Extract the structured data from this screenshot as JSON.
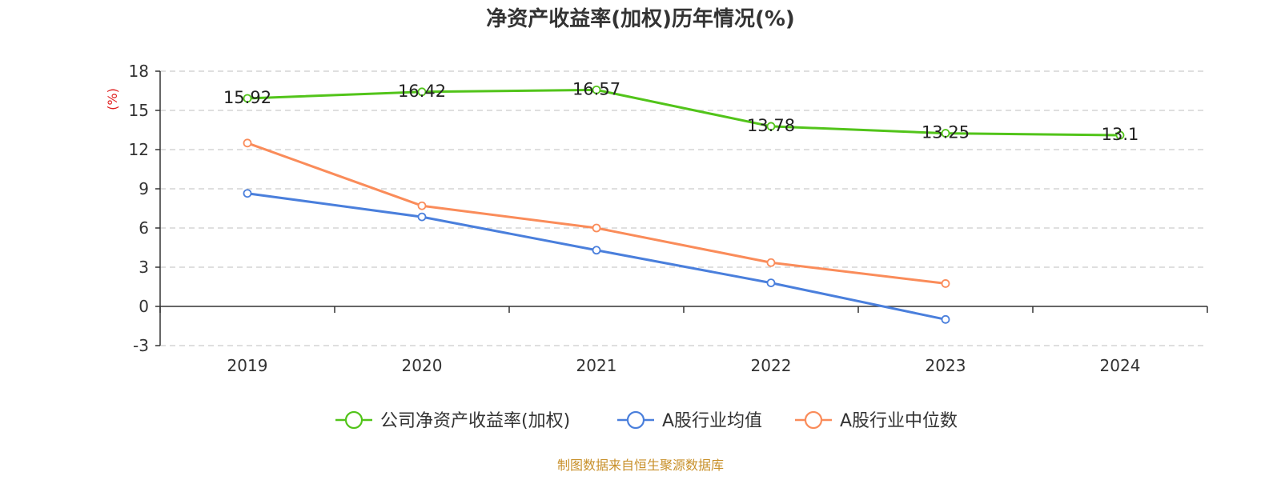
{
  "chart_data": {
    "type": "line",
    "title": "净资产收益率(加权)历年情况(%)",
    "ylabel": "(%)",
    "xlabel": "",
    "categories": [
      "2019",
      "2020",
      "2021",
      "2022",
      "2023",
      "2024"
    ],
    "ylim": [
      -3,
      18
    ],
    "yticks": [
      18,
      15,
      12,
      9,
      6,
      3,
      0,
      -3
    ],
    "grid": true,
    "legend_position": "bottom-center",
    "series": [
      {
        "name": "公司净资产收益率(加权)",
        "color": "#52c41a",
        "values": [
          15.92,
          16.42,
          16.57,
          13.78,
          13.25,
          13.1
        ],
        "labels": [
          "15.92",
          "16.42",
          "16.57",
          "13.78",
          "13.25",
          "13.1"
        ]
      },
      {
        "name": "A股行业均值",
        "color": "#4a7fdc",
        "values": [
          8.65,
          6.85,
          4.3,
          1.8,
          -1.0,
          null
        ]
      },
      {
        "name": "A股行业中位数",
        "color": "#fa8c5a",
        "values": [
          12.5,
          7.7,
          6.0,
          3.35,
          1.75,
          null
        ]
      }
    ],
    "source": "制图数据来自恒生聚源数据库",
    "colors": {
      "ylabel": "#e02020",
      "source": "#c8902a",
      "axis": "#333333",
      "grid": "#cccccc"
    }
  }
}
